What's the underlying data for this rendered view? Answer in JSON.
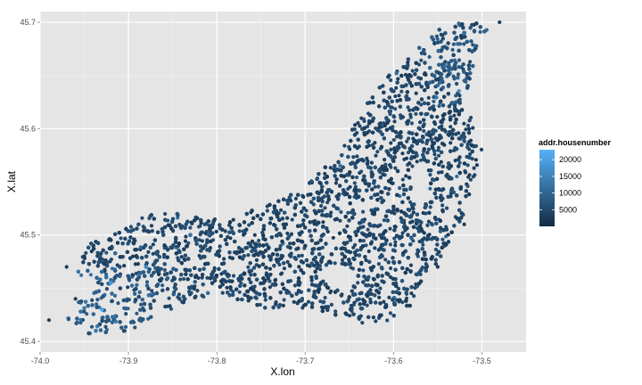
{
  "chart_data": {
    "type": "scatter",
    "xlabel": "X.lon",
    "ylabel": "X.lat",
    "xlim": [
      -74.0,
      -73.45
    ],
    "ylim": [
      45.39,
      45.71
    ],
    "x_ticks": [
      "-74.0",
      "-73.9",
      "-73.8",
      "-73.7",
      "-73.6",
      "-73.5"
    ],
    "y_ticks": [
      "45.4",
      "45.5",
      "45.6",
      "45.7"
    ],
    "x_tick_values": [
      -74.0,
      -73.9,
      -73.8,
      -73.7,
      -73.6,
      -73.5
    ],
    "y_tick_values": [
      45.4,
      45.5,
      45.6,
      45.7
    ],
    "grid": true,
    "panel_background": "#e5e5e5",
    "legend": {
      "title": "addr.housenumber",
      "placement": "right",
      "breaks": [
        "20000",
        "15000",
        "10000",
        "5000"
      ],
      "break_values": [
        20000,
        15000,
        10000,
        5000
      ],
      "range": [
        1,
        23000
      ],
      "low_color": "#132b43",
      "high_color": "#56b1f7"
    },
    "outline": [
      [
        -73.97,
        45.42
      ],
      [
        -73.94,
        45.405
      ],
      [
        -73.9,
        45.41
      ],
      [
        -73.85,
        45.43
      ],
      [
        -73.8,
        45.445
      ],
      [
        -73.74,
        45.43
      ],
      [
        -73.7,
        45.43
      ],
      [
        -73.65,
        45.42
      ],
      [
        -73.62,
        45.415
      ],
      [
        -73.59,
        45.42
      ],
      [
        -73.57,
        45.45
      ],
      [
        -73.55,
        45.475
      ],
      [
        -73.52,
        45.52
      ],
      [
        -73.5,
        45.58
      ],
      [
        -73.52,
        45.63
      ],
      [
        -73.49,
        45.7
      ],
      [
        -73.54,
        45.7
      ],
      [
        -73.58,
        45.67
      ],
      [
        -73.6,
        45.655
      ],
      [
        -73.63,
        45.625
      ],
      [
        -73.66,
        45.58
      ],
      [
        -73.7,
        45.545
      ],
      [
        -73.75,
        45.525
      ],
      [
        -73.8,
        45.515
      ],
      [
        -73.84,
        45.52
      ],
      [
        -73.88,
        45.52
      ],
      [
        -73.92,
        45.5
      ],
      [
        -73.95,
        45.49
      ],
      [
        -73.96,
        45.46
      ],
      [
        -73.93,
        45.45
      ],
      [
        -73.96,
        45.435
      ]
    ],
    "point_count_rendered": 9000,
    "sample_highlights": [
      {
        "x": -73.93,
        "y": 45.43,
        "value": 21000
      },
      {
        "x": -73.92,
        "y": 45.455,
        "value": 18000
      },
      {
        "x": -73.88,
        "y": 45.47,
        "value": 16000
      },
      {
        "x": -73.83,
        "y": 45.5,
        "value": 12000
      },
      {
        "x": -73.52,
        "y": 45.69,
        "value": 11000
      }
    ]
  }
}
